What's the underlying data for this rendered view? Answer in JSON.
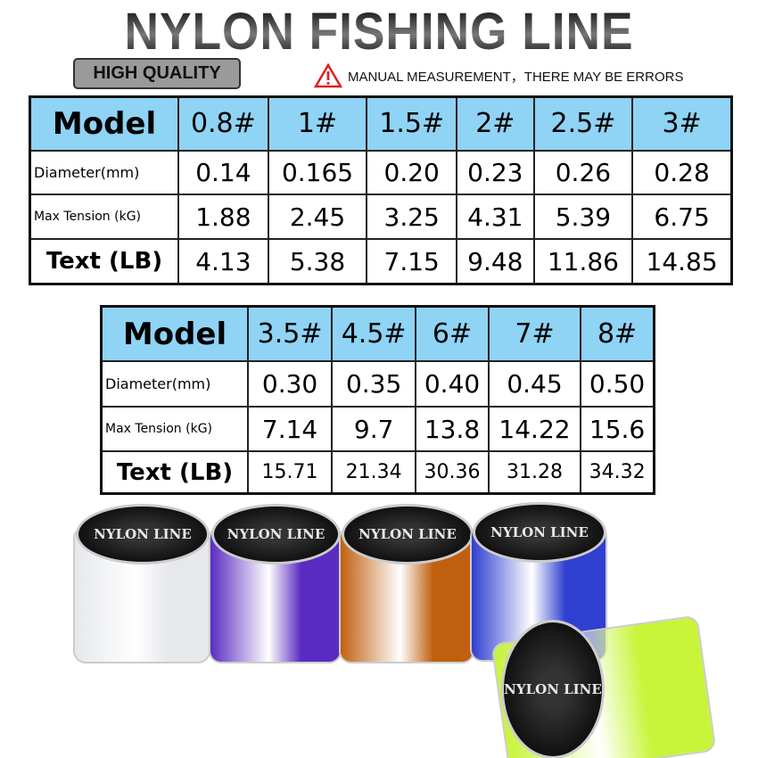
{
  "header": {
    "title": "NYLON FISHING LINE",
    "badge": "HIGH QUALITY",
    "warning": "MANUAL MEASUREMENT，THERE MAY BE ERRORS"
  },
  "table1": {
    "header": [
      "Model",
      "0.8#",
      "1#",
      "1.5#",
      "2#",
      "2.5#",
      "3#"
    ],
    "rows": [
      {
        "label": "Diameter(mm)",
        "values": [
          "0.14",
          "0.165",
          "0.20",
          "0.23",
          "0.26",
          "0.28"
        ]
      },
      {
        "label": "Max Tension (kG)",
        "values": [
          "1.88",
          "2.45",
          "3.25",
          "4.31",
          "5.39",
          "6.75"
        ]
      },
      {
        "label": "Text (LB)",
        "values": [
          "4.13",
          "5.38",
          "7.15",
          "9.48",
          "11.86",
          "14.85"
        ]
      }
    ]
  },
  "table2": {
    "header": [
      "Model",
      "3.5#",
      "4.5#",
      "6#",
      "7#",
      "8#"
    ],
    "rows": [
      {
        "label": "Diameter(mm)",
        "values": [
          "0.30",
          "0.35",
          "0.40",
          "0.45",
          "0.50"
        ]
      },
      {
        "label": "Max Tension (kG)",
        "values": [
          "7.14",
          "9.7",
          "13.8",
          "14.22",
          "15.6"
        ]
      },
      {
        "label": "Text (LB)",
        "values": [
          "15.71",
          "21.34",
          "30.36",
          "31.28",
          "34.32"
        ]
      }
    ]
  },
  "spools": {
    "label": "NYLON LINE",
    "colors": [
      "#e6e8ec",
      "#5a2bc0",
      "#c0600f",
      "#2f3fd0",
      "#c8f53a"
    ]
  },
  "colors": {
    "header_bg": "#8fd3f5",
    "warning": "#e02020"
  }
}
